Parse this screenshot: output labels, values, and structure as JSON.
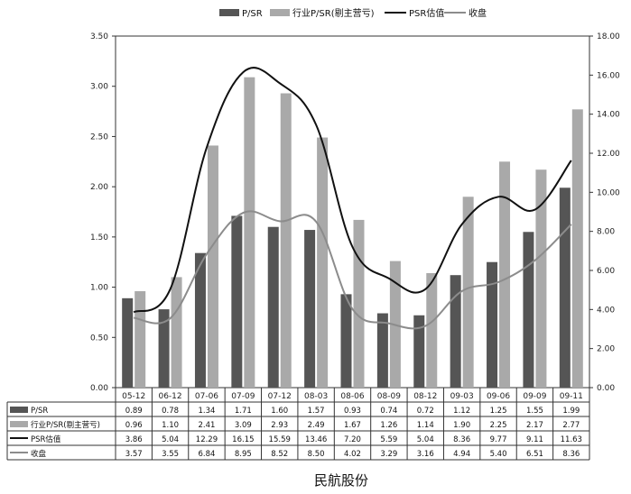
{
  "chart_data": {
    "type": "bar+line",
    "title": "",
    "caption": "民航股份",
    "categories": [
      "05-12",
      "06-12",
      "07-06",
      "07-09",
      "07-12",
      "08-03",
      "08-06",
      "08-09",
      "08-12",
      "09-03",
      "09-06",
      "09-09",
      "09-11"
    ],
    "y_left": {
      "min": 0,
      "max": 3.5,
      "step": 0.5,
      "ticks": [
        "0.00",
        "0.50",
        "1.00",
        "1.50",
        "2.00",
        "2.50",
        "3.00",
        "3.50"
      ]
    },
    "y_right": {
      "min": 0,
      "max": 18,
      "step": 2,
      "ticks": [
        "0.00",
        "2.00",
        "4.00",
        "6.00",
        "8.00",
        "10.00",
        "12.00",
        "14.00",
        "16.00",
        "18.00"
      ]
    },
    "series": [
      {
        "name": "P/SR",
        "kind": "bar",
        "axis": "left",
        "color": "#555555",
        "values": [
          0.89,
          0.78,
          1.34,
          1.71,
          1.6,
          1.57,
          0.93,
          0.74,
          0.72,
          1.12,
          1.25,
          1.55,
          1.99
        ],
        "labels": [
          "0.89",
          "0.78",
          "1.34",
          "1.71",
          "1.60",
          "1.57",
          "0.93",
          "0.74",
          "0.72",
          "1.12",
          "1.25",
          "1.55",
          "1.99"
        ]
      },
      {
        "name": "行业P/SR(剔主营亏)",
        "kind": "bar",
        "axis": "left",
        "color": "#a9a9a9",
        "values": [
          0.96,
          1.1,
          2.41,
          3.09,
          2.93,
          2.49,
          1.67,
          1.26,
          1.14,
          1.9,
          2.25,
          2.17,
          2.77
        ],
        "labels": [
          "0.96",
          "1.10",
          "2.41",
          "3.09",
          "2.93",
          "2.49",
          "1.67",
          "1.26",
          "1.14",
          "1.90",
          "2.25",
          "2.17",
          "2.77"
        ]
      },
      {
        "name": "PSR估值",
        "kind": "line",
        "axis": "right",
        "color": "#111111",
        "values": [
          3.86,
          5.04,
          12.29,
          16.15,
          15.59,
          13.46,
          7.2,
          5.59,
          5.04,
          8.36,
          9.77,
          9.11,
          11.63
        ],
        "labels": [
          "3.86",
          "5.04",
          "12.29",
          "16.15",
          "15.59",
          "13.46",
          "7.20",
          "5.59",
          "5.04",
          "8.36",
          "9.77",
          "9.11",
          "11.63"
        ]
      },
      {
        "name": "收盘",
        "kind": "line",
        "axis": "right",
        "color": "#8c8c8c",
        "values": [
          3.57,
          3.55,
          6.84,
          8.95,
          8.52,
          8.5,
          4.02,
          3.29,
          3.16,
          4.94,
          5.4,
          6.51,
          8.36
        ],
        "labels": [
          "3.57",
          "3.55",
          "6.84",
          "8.95",
          "8.52",
          "8.50",
          "4.02",
          "3.29",
          "3.16",
          "4.94",
          "5.40",
          "6.51",
          "8.36"
        ]
      }
    ],
    "legend": {
      "position": "top-center",
      "labels": [
        "P/SR",
        "行业P/SR(剔主营亏)",
        "PSR估值",
        "收盘"
      ]
    },
    "grid": false
  }
}
